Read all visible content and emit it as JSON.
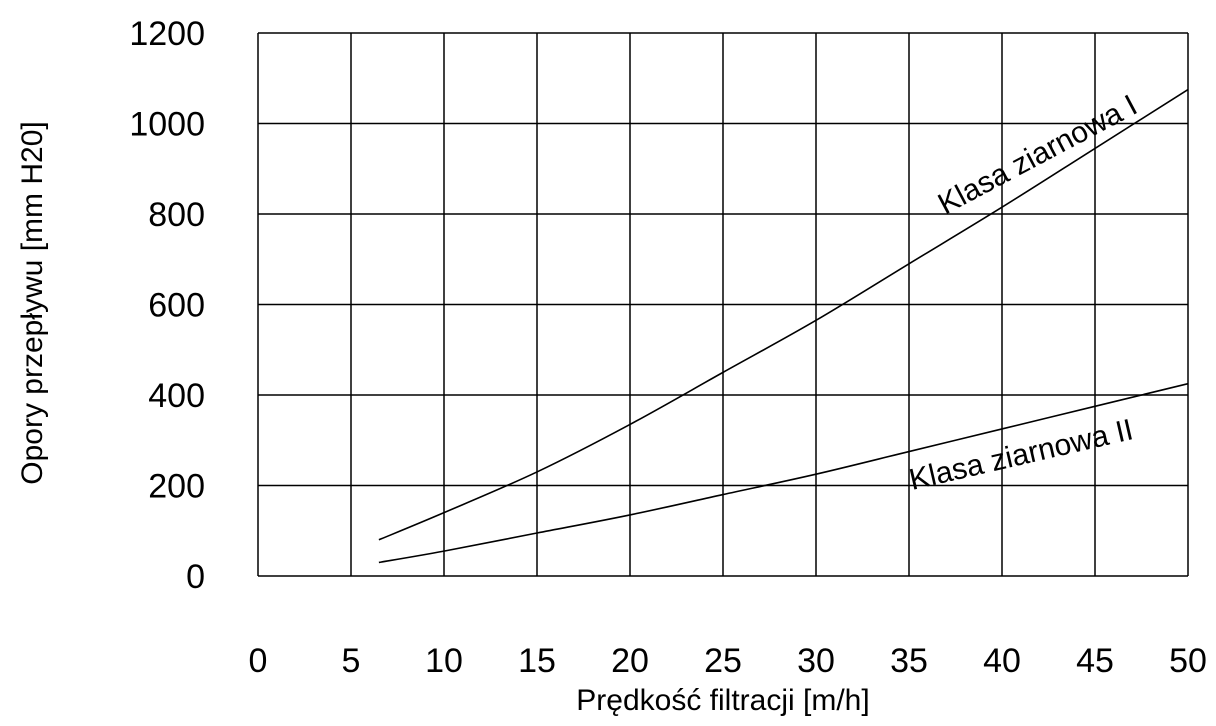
{
  "chart_data": {
    "type": "line",
    "title": "",
    "xlabel": "Prędkość filtracji [m/h]",
    "ylabel": "Opory przepływu [mm H20]",
    "xlim": [
      0,
      50
    ],
    "ylim": [
      0,
      1200
    ],
    "x_ticks": [
      "0",
      "5",
      "10",
      "15",
      "20",
      "25",
      "30",
      "35",
      "40",
      "45",
      "50"
    ],
    "y_ticks": [
      "0",
      "200",
      "400",
      "600",
      "800",
      "1000",
      "1200"
    ],
    "grid": true,
    "legend": "none",
    "series": [
      {
        "name": "Klasa ziarnowa I",
        "x": [
          6.5,
          10,
          15,
          20,
          25,
          30,
          35,
          40,
          45,
          50
        ],
        "y": [
          80,
          140,
          230,
          335,
          450,
          565,
          690,
          815,
          945,
          1075
        ]
      },
      {
        "name": "Klasa ziarnowa II",
        "x": [
          6.5,
          10,
          15,
          20,
          25,
          30,
          35,
          40,
          45,
          50
        ],
        "y": [
          30,
          55,
          95,
          135,
          180,
          225,
          275,
          325,
          375,
          425
        ]
      }
    ]
  }
}
